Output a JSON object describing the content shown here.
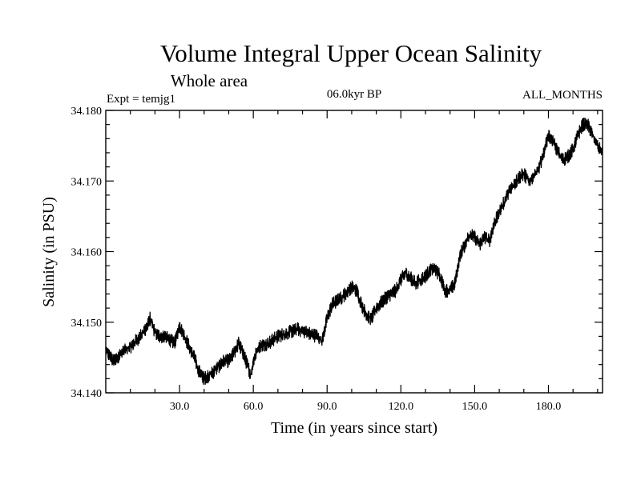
{
  "chart_data": {
    "type": "line",
    "title": "Volume Integral Upper Ocean Salinity",
    "subtitle": "Whole area",
    "experiment": "Expt = temjg1",
    "period": "06.0kyr BP",
    "months": "ALL_MONTHS",
    "xlabel": "Time (in years since start)",
    "ylabel": "Salinity (in PSU)",
    "xlim": [
      0,
      202
    ],
    "ylim": [
      34.14,
      34.18
    ],
    "xticks": [
      30,
      60,
      90,
      120,
      150,
      180
    ],
    "xtick_labels": [
      "30.0",
      "60.0",
      "90.0",
      "120.0",
      "150.0",
      "180.0"
    ],
    "yticks": [
      34.14,
      34.15,
      34.16,
      34.17,
      34.18
    ],
    "ytick_labels": [
      "34.140",
      "34.150",
      "34.160",
      "34.170",
      "34.180"
    ],
    "sampling": "monthly",
    "noise_amplitude": 0.0012,
    "grid": false,
    "series": [
      {
        "name": "Salinity",
        "color": "#000000",
        "x": [
          0,
          3,
          6,
          10,
          14,
          17,
          18,
          19,
          20,
          22,
          24,
          26,
          28,
          30,
          32,
          34,
          36,
          38,
          40,
          44,
          48,
          50,
          52,
          54,
          56,
          58,
          59,
          60,
          62,
          66,
          70,
          74,
          78,
          82,
          86,
          88,
          90,
          92,
          96,
          100,
          102,
          104,
          106,
          108,
          110,
          114,
          118,
          120,
          122,
          126,
          130,
          132,
          134,
          136,
          138,
          140,
          142,
          144,
          146,
          148,
          150,
          152,
          154,
          156,
          158,
          160,
          164,
          168,
          170,
          172,
          176,
          178,
          180,
          182,
          184,
          186,
          188,
          190,
          192,
          194,
          196,
          198,
          200,
          202
        ],
        "values": [
          34.146,
          34.1445,
          34.1455,
          34.1465,
          34.148,
          34.1495,
          34.1505,
          34.1495,
          34.1485,
          34.148,
          34.148,
          34.1475,
          34.147,
          34.1495,
          34.148,
          34.1465,
          34.145,
          34.143,
          34.142,
          34.143,
          34.1445,
          34.1445,
          34.1455,
          34.147,
          34.1455,
          34.1435,
          34.1425,
          34.1445,
          34.1465,
          34.147,
          34.148,
          34.1485,
          34.149,
          34.1485,
          34.148,
          34.1475,
          34.1505,
          34.1525,
          34.1535,
          34.155,
          34.1545,
          34.1525,
          34.151,
          34.1505,
          34.152,
          34.1535,
          34.1545,
          34.156,
          34.157,
          34.1555,
          34.1565,
          34.1575,
          34.1575,
          34.1565,
          34.1545,
          34.1545,
          34.1555,
          34.1595,
          34.161,
          34.1625,
          34.162,
          34.161,
          34.162,
          34.1615,
          34.164,
          34.1655,
          34.1685,
          34.1705,
          34.171,
          34.17,
          34.1715,
          34.174,
          34.1765,
          34.1755,
          34.174,
          34.173,
          34.1735,
          34.1745,
          34.1765,
          34.178,
          34.178,
          34.1765,
          34.175,
          34.174
        ]
      }
    ]
  }
}
